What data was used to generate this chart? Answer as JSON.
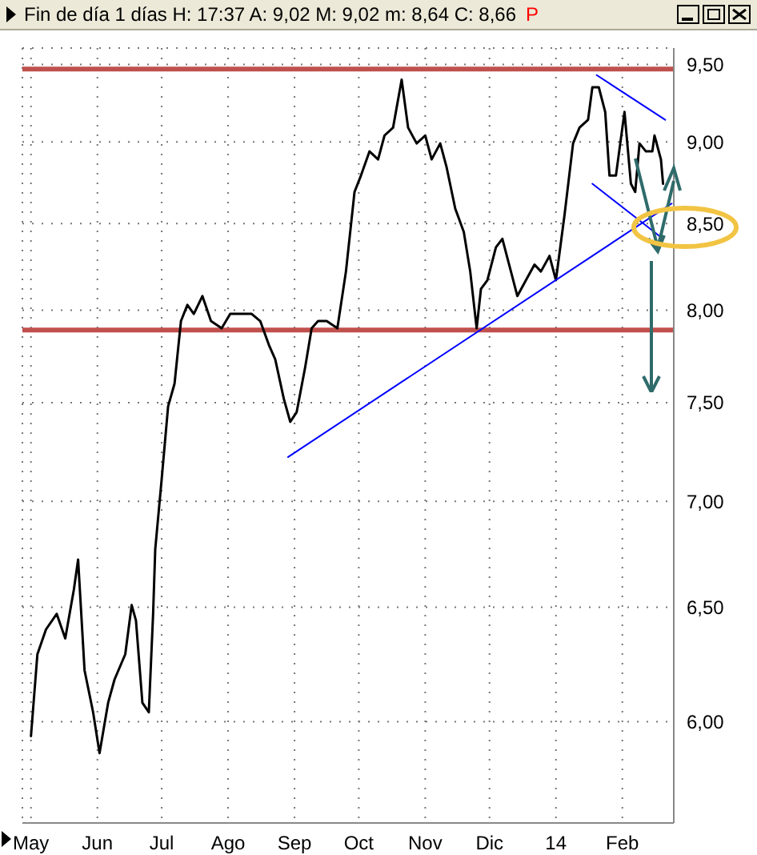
{
  "chart_data": {
    "type": "line",
    "title": "Fin de día 1 días  H: 17:37  A: 9,02  M: 9,02  m: 8,64  C: 8,66",
    "annotations": [
      "P"
    ],
    "x": [
      "2013-05-01",
      "2013-05-04",
      "2013-05-08",
      "2013-05-13",
      "2013-05-17",
      "2013-05-21",
      "2013-05-23",
      "2013-05-26",
      "2013-05-30",
      "2013-06-02",
      "2013-06-06",
      "2013-06-09",
      "2013-06-14",
      "2013-06-17",
      "2013-06-19",
      "2013-06-22",
      "2013-06-25",
      "2013-06-27",
      "2013-06-28",
      "2013-07-01",
      "2013-07-04",
      "2013-07-07",
      "2013-07-10",
      "2013-07-13",
      "2013-07-16",
      "2013-07-20",
      "2013-07-24",
      "2013-07-29",
      "2013-08-02",
      "2013-08-07",
      "2013-08-12",
      "2013-08-16",
      "2013-08-20",
      "2013-08-23",
      "2013-08-27",
      "2013-08-30",
      "2013-09-02",
      "2013-09-06",
      "2013-09-09",
      "2013-09-12",
      "2013-09-16",
      "2013-09-21",
      "2013-09-25",
      "2013-09-29",
      "2013-10-02",
      "2013-10-06",
      "2013-10-10",
      "2013-10-13",
      "2013-10-17",
      "2013-10-21",
      "2013-10-24",
      "2013-10-28",
      "2013-11-01",
      "2013-11-04",
      "2013-11-08",
      "2013-11-11",
      "2013-11-15",
      "2013-11-19",
      "2013-11-22",
      "2013-11-25",
      "2013-11-27",
      "2013-11-30",
      "2013-12-04",
      "2013-12-07",
      "2013-12-11",
      "2013-12-14",
      "2013-12-18",
      "2013-12-22",
      "2013-12-25",
      "2013-12-29",
      "2014-01-01",
      "2014-01-05",
      "2014-01-09",
      "2014-01-12",
      "2014-01-16",
      "2014-01-18",
      "2014-01-21",
      "2014-01-24",
      "2014-01-26",
      "2014-01-29",
      "2014-02-02",
      "2014-02-05",
      "2014-02-07",
      "2014-02-09",
      "2014-02-12",
      "2014-02-15",
      "2014-02-16",
      "2014-02-19",
      "2014-02-20"
    ],
    "series": [
      {
        "color": "#000000",
        "values": [
          5.94,
          6.29,
          6.4,
          6.47,
          6.36,
          6.58,
          6.72,
          6.22,
          6.04,
          5.87,
          6.08,
          6.18,
          6.29,
          6.51,
          6.44,
          6.08,
          6.04,
          6.47,
          6.77,
          7.11,
          7.48,
          7.6,
          7.94,
          8.03,
          7.98,
          8.08,
          7.94,
          7.9,
          7.98,
          7.98,
          7.98,
          7.94,
          7.81,
          7.73,
          7.52,
          7.4,
          7.45,
          7.69,
          7.9,
          7.94,
          7.94,
          7.9,
          8.22,
          8.69,
          8.79,
          8.94,
          8.89,
          9.04,
          9.09,
          9.4,
          9.09,
          8.99,
          9.04,
          8.89,
          8.99,
          8.84,
          8.59,
          8.45,
          8.22,
          7.9,
          8.12,
          8.17,
          8.36,
          8.41,
          8.22,
          8.08,
          8.17,
          8.26,
          8.22,
          8.31,
          8.17,
          8.55,
          8.99,
          9.09,
          9.14,
          9.35,
          9.35,
          9.19,
          8.79,
          8.79,
          9.19,
          8.74,
          8.69,
          8.99,
          8.94,
          8.94,
          9.04,
          8.89,
          8.74
        ]
      },
      {
        "type": "line",
        "color": "#0000ff",
        "x": [
          "2013-08-29",
          "2014-02-24"
        ],
        "values": [
          7.22,
          8.62
        ]
      },
      {
        "type": "line",
        "color": "#0000ff",
        "x": [
          "2014-01-20",
          "2014-02-21"
        ],
        "values": [
          9.43,
          9.14
        ]
      },
      {
        "type": "line",
        "color": "#0000ff",
        "x": [
          "2014-01-18",
          "2014-02-19"
        ],
        "values": [
          8.74,
          8.42
        ]
      }
    ],
    "xlim": [
      "2013-04-27",
      "2014-02-25"
    ],
    "xticks": [
      {
        "value": "2013-05-01",
        "label": "May"
      },
      {
        "value": "2013-06-01",
        "label": "Jun"
      },
      {
        "value": "2013-07-01",
        "label": "Jul"
      },
      {
        "value": "2013-08-01",
        "label": "Ago"
      },
      {
        "value": "2013-09-01",
        "label": "Sep"
      },
      {
        "value": "2013-10-01",
        "label": "Oct"
      },
      {
        "value": "2013-11-01",
        "label": "Nov"
      },
      {
        "value": "2013-12-01",
        "label": "Dic"
      },
      {
        "value": "2014-01-01",
        "label": "14"
      },
      {
        "value": "2014-02-01",
        "label": "Feb"
      }
    ],
    "ylim": [
      5.59,
      9.61
    ],
    "yticks": [
      {
        "value": 6,
        "label": "6,00"
      },
      {
        "value": 6.5,
        "label": "6,50"
      },
      {
        "value": 7,
        "label": "7,00"
      },
      {
        "value": 7.5,
        "label": "7,50"
      },
      {
        "value": 8,
        "label": "8,00"
      },
      {
        "value": 8.5,
        "label": "8,50"
      },
      {
        "value": 9,
        "label": "9,00"
      },
      {
        "value": 9.5,
        "label": "9,50"
      }
    ],
    "log": "y",
    "grid": true,
    "marker": "none",
    "line_style": "solid",
    "ref_lines": [
      {
        "axis": "y",
        "value": 9.47,
        "color": "#c0504d"
      },
      {
        "axis": "y",
        "value": 7.89,
        "color": "#c0504d"
      }
    ]
  }
}
